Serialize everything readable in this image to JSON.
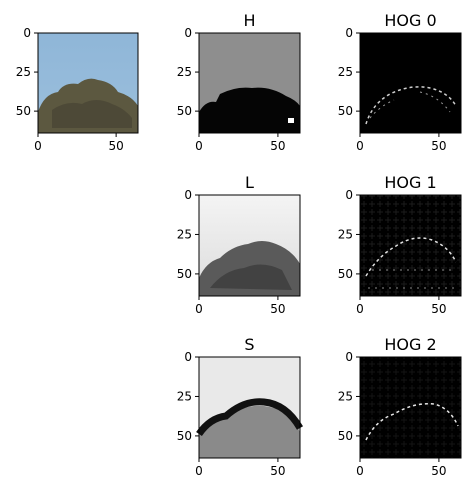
{
  "chart_data": [
    {
      "type": "image",
      "title": "",
      "content": "RGB photo: tree crown against blue sky",
      "xticks": [
        "0",
        "50"
      ],
      "yticks": [
        "0",
        "25",
        "50"
      ],
      "xlim": [
        0,
        64
      ],
      "ylim": [
        64,
        0
      ]
    },
    {
      "type": "image",
      "title": "H",
      "content": "Hue channel (grayscale)",
      "xticks": [
        "0",
        "50"
      ],
      "yticks": [
        "0",
        "25",
        "50"
      ],
      "xlim": [
        0,
        64
      ],
      "ylim": [
        64,
        0
      ]
    },
    {
      "type": "image",
      "title": "HOG 0",
      "content": "HOG visualization of H channel",
      "xticks": [
        "0",
        "50"
      ],
      "yticks": [
        "0",
        "25",
        "50"
      ],
      "xlim": [
        0,
        64
      ],
      "ylim": [
        64,
        0
      ]
    },
    {
      "type": "image",
      "title": "L",
      "content": "Lightness channel (grayscale)",
      "xticks": [
        "0",
        "50"
      ],
      "yticks": [
        "0",
        "25",
        "50"
      ],
      "xlim": [
        0,
        64
      ],
      "ylim": [
        64,
        0
      ]
    },
    {
      "type": "image",
      "title": "HOG 1",
      "content": "HOG visualization of L channel",
      "xticks": [
        "0",
        "50"
      ],
      "yticks": [
        "0",
        "25",
        "50"
      ],
      "xlim": [
        0,
        64
      ],
      "ylim": [
        64,
        0
      ]
    },
    {
      "type": "image",
      "title": "S",
      "content": "Saturation channel (grayscale)",
      "xticks": [
        "0",
        "50"
      ],
      "yticks": [
        "0",
        "25",
        "50"
      ],
      "xlim": [
        0,
        64
      ],
      "ylim": [
        64,
        0
      ]
    },
    {
      "type": "image",
      "title": "HOG 2",
      "content": "HOG visualization of S channel",
      "xticks": [
        "0",
        "50"
      ],
      "yticks": [
        "0",
        "25",
        "50"
      ],
      "xlim": [
        0,
        64
      ],
      "ylim": [
        64,
        0
      ]
    }
  ],
  "colors": {
    "sky": "#8db4d6",
    "foliage": "#5f5a42",
    "hog_bg": "#000000",
    "hog_line": "#ffffff"
  }
}
